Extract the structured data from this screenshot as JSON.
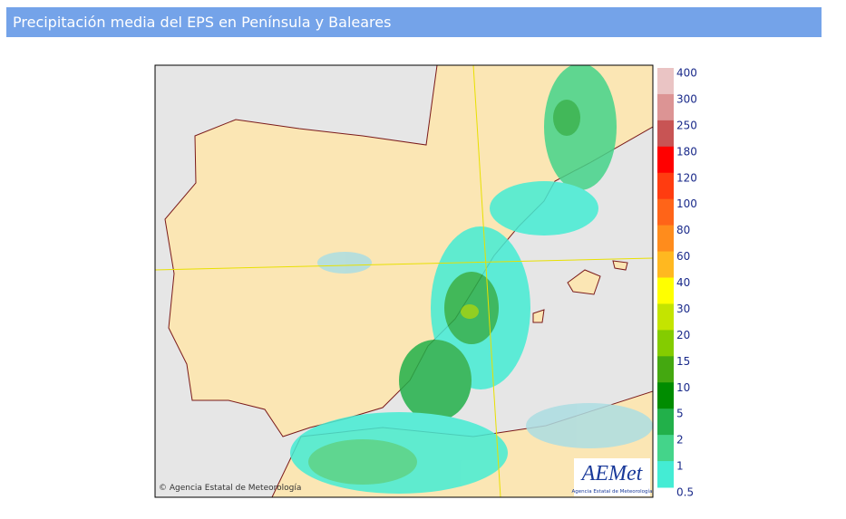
{
  "header": {
    "title": "Precipitación media del EPS en Península y Baleares"
  },
  "map": {
    "copyright": "© Agencia Estatal de Meteorología",
    "logo": {
      "name": "AEMet",
      "subtitle": "Agencia Estatal de Meteorología"
    }
  },
  "legend": {
    "labels": [
      "400",
      "300",
      "250",
      "180",
      "120",
      "100",
      "80",
      "60",
      "40",
      "30",
      "20",
      "15",
      "10",
      "5",
      "2",
      "1",
      "0.5"
    ],
    "colors": [
      "#eac4c4",
      "#dc9494",
      "#c85454",
      "#ff0000",
      "#ff3c10",
      "#ff6418",
      "#ff8c1c",
      "#ffb820",
      "#ffff00",
      "#c4e400",
      "#84cc00",
      "#44a810",
      "#008c00",
      "#22b04a",
      "#44d48a",
      "#44ecd4",
      "#acdde2"
    ]
  }
}
